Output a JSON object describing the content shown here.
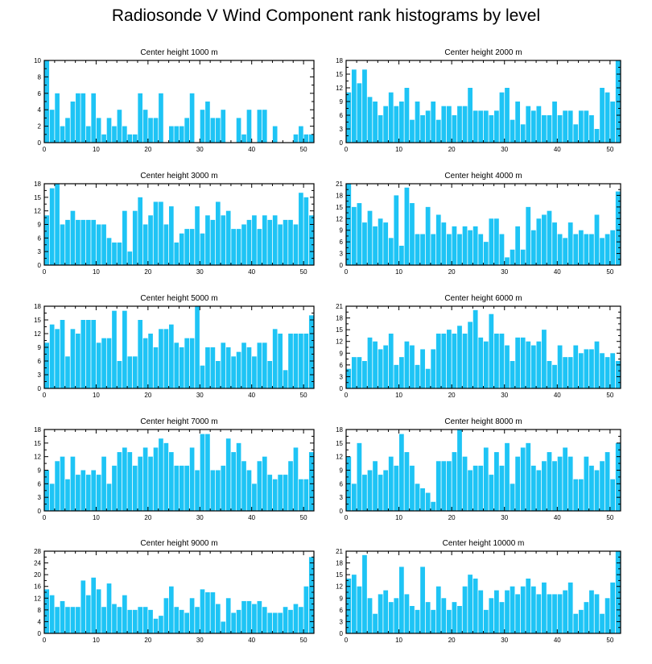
{
  "title": "Radiosonde V Wind Component rank histograms by level",
  "bar_color": "#1ec4f5",
  "chart_data": [
    {
      "type": "bar",
      "title": "Center height 1000 m",
      "xlim": [
        0,
        52
      ],
      "ylim": [
        0,
        10
      ],
      "xticks": [
        0,
        10,
        20,
        30,
        40,
        50
      ],
      "yticks": [
        0,
        2,
        4,
        6,
        8,
        10
      ],
      "values": [
        10,
        4,
        6,
        2,
        3,
        5,
        6,
        6,
        2,
        6,
        3,
        1,
        3,
        2,
        4,
        2,
        1,
        1,
        6,
        4,
        3,
        3,
        6,
        0,
        2,
        2,
        2,
        3,
        6,
        0,
        4,
        5,
        3,
        3,
        4,
        0,
        0,
        3,
        1,
        4,
        0,
        4,
        4,
        0,
        2,
        0,
        0,
        0,
        1,
        2,
        1,
        1
      ]
    },
    {
      "type": "bar",
      "title": "Center height 2000 m",
      "xlim": [
        0,
        52
      ],
      "ylim": [
        0,
        18
      ],
      "xticks": [
        0,
        10,
        20,
        30,
        40,
        50
      ],
      "yticks": [
        0,
        3,
        6,
        9,
        12,
        15,
        18
      ],
      "values": [
        11,
        16,
        13,
        16,
        10,
        9,
        6,
        8,
        11,
        8,
        9,
        12,
        5,
        9,
        6,
        7,
        9,
        5,
        8,
        8,
        6,
        8,
        8,
        12,
        7,
        7,
        7,
        6,
        7,
        11,
        12,
        5,
        9,
        4,
        8,
        7,
        8,
        6,
        6,
        9,
        6,
        7,
        7,
        4,
        7,
        7,
        6,
        3,
        12,
        11,
        9,
        18
      ]
    },
    {
      "type": "bar",
      "title": "Center height 3000 m",
      "xlim": [
        0,
        52
      ],
      "ylim": [
        0,
        18
      ],
      "xticks": [
        0,
        10,
        20,
        30,
        40,
        50
      ],
      "yticks": [
        0,
        3,
        6,
        9,
        12,
        15,
        18
      ],
      "values": [
        11,
        17,
        18,
        9,
        10,
        12,
        10,
        10,
        10,
        10,
        9,
        9,
        6,
        5,
        5,
        12,
        3,
        12,
        15,
        9,
        11,
        14,
        14,
        9,
        13,
        5,
        7,
        8,
        8,
        13,
        7,
        11,
        10,
        14,
        11,
        12,
        8,
        8,
        9,
        10,
        11,
        8,
        11,
        10,
        11,
        9,
        10,
        10,
        9,
        16,
        15,
        11
      ]
    },
    {
      "type": "bar",
      "title": "Center height 4000 m",
      "xlim": [
        0,
        52
      ],
      "ylim": [
        0,
        21
      ],
      "xticks": [
        0,
        10,
        20,
        30,
        40,
        50
      ],
      "yticks": [
        0,
        3,
        6,
        9,
        12,
        15,
        18,
        21
      ],
      "values": [
        21,
        15,
        16,
        11,
        14,
        10,
        12,
        11,
        7,
        18,
        5,
        20,
        16,
        8,
        8,
        15,
        8,
        13,
        11,
        8,
        10,
        8,
        10,
        9,
        10,
        8,
        6,
        12,
        12,
        8,
        2,
        4,
        10,
        4,
        15,
        9,
        12,
        13,
        14,
        11,
        8,
        7,
        11,
        8,
        9,
        8,
        8,
        13,
        7,
        8,
        9,
        19
      ]
    },
    {
      "type": "bar",
      "title": "Center height 5000 m",
      "xlim": [
        0,
        52
      ],
      "ylim": [
        0,
        18
      ],
      "xticks": [
        0,
        10,
        20,
        30,
        40,
        50
      ],
      "yticks": [
        0,
        3,
        6,
        9,
        12,
        15,
        18
      ],
      "values": [
        10,
        14,
        13,
        15,
        7,
        13,
        12,
        15,
        15,
        15,
        10,
        11,
        11,
        17,
        6,
        17,
        7,
        7,
        15,
        11,
        12,
        9,
        13,
        13,
        14,
        10,
        9,
        11,
        11,
        18,
        5,
        9,
        9,
        6,
        10,
        9,
        7,
        8,
        10,
        9,
        7,
        10,
        10,
        6,
        13,
        12,
        4,
        12,
        12,
        12,
        12,
        16
      ]
    },
    {
      "type": "bar",
      "title": "Center height 6000 m",
      "xlim": [
        0,
        52
      ],
      "ylim": [
        0,
        21
      ],
      "xticks": [
        0,
        10,
        20,
        30,
        40,
        50
      ],
      "yticks": [
        0,
        3,
        6,
        9,
        12,
        15,
        18,
        21
      ],
      "values": [
        5,
        8,
        8,
        7,
        13,
        12,
        10,
        11,
        14,
        6,
        8,
        12,
        11,
        6,
        10,
        5,
        10,
        14,
        14,
        15,
        14,
        16,
        14,
        17,
        20,
        13,
        12,
        19,
        14,
        14,
        11,
        7,
        13,
        13,
        12,
        11,
        12,
        15,
        7,
        6,
        11,
        8,
        8,
        11,
        9,
        10,
        10,
        12,
        9,
        8,
        9,
        7
      ]
    },
    {
      "type": "bar",
      "title": "Center height 7000 m",
      "xlim": [
        0,
        52
      ],
      "ylim": [
        0,
        18
      ],
      "xticks": [
        0,
        10,
        20,
        30,
        40,
        50
      ],
      "yticks": [
        0,
        3,
        6,
        9,
        12,
        15,
        18
      ],
      "values": [
        9,
        6,
        11,
        12,
        7,
        12,
        8,
        9,
        8,
        9,
        8,
        12,
        6,
        10,
        13,
        14,
        13,
        10,
        12,
        14,
        12,
        14,
        16,
        15,
        13,
        10,
        10,
        10,
        14,
        9,
        17,
        17,
        9,
        9,
        10,
        16,
        13,
        15,
        11,
        9,
        6,
        11,
        12,
        8,
        7,
        8,
        8,
        11,
        14,
        7,
        7,
        13
      ]
    },
    {
      "type": "bar",
      "title": "Center height 8000 m",
      "xlim": [
        0,
        52
      ],
      "ylim": [
        0,
        18
      ],
      "xticks": [
        0,
        10,
        20,
        30,
        40,
        50
      ],
      "yticks": [
        0,
        3,
        6,
        9,
        12,
        15,
        18
      ],
      "values": [
        12,
        6,
        15,
        8,
        9,
        11,
        8,
        9,
        12,
        10,
        17,
        13,
        10,
        6,
        5,
        4,
        2,
        11,
        11,
        11,
        13,
        18,
        12,
        9,
        10,
        10,
        14,
        8,
        13,
        10,
        15,
        6,
        12,
        14,
        15,
        10,
        9,
        11,
        13,
        11,
        12,
        14,
        12,
        7,
        7,
        12,
        10,
        9,
        11,
        13,
        7,
        15
      ]
    },
    {
      "type": "bar",
      "title": "Center height 9000 m",
      "xlim": [
        0,
        52
      ],
      "ylim": [
        0,
        28
      ],
      "xticks": [
        0,
        10,
        20,
        30,
        40,
        50
      ],
      "yticks": [
        0,
        4,
        8,
        12,
        16,
        20,
        24,
        28
      ],
      "values": [
        15,
        13,
        9,
        11,
        9,
        9,
        9,
        18,
        13,
        19,
        15,
        9,
        17,
        10,
        9,
        13,
        8,
        8,
        9,
        9,
        8,
        5,
        6,
        12,
        16,
        9,
        8,
        7,
        12,
        9,
        15,
        14,
        14,
        10,
        4,
        12,
        7,
        8,
        11,
        11,
        10,
        11,
        9,
        7,
        7,
        7,
        9,
        8,
        10,
        9,
        16,
        26
      ]
    },
    {
      "type": "bar",
      "title": "Center height 10000 m",
      "xlim": [
        0,
        52
      ],
      "ylim": [
        0,
        21
      ],
      "xticks": [
        0,
        10,
        20,
        30,
        40,
        50
      ],
      "yticks": [
        0,
        3,
        6,
        9,
        12,
        15,
        18,
        21
      ],
      "values": [
        14,
        15,
        12,
        20,
        9,
        5,
        10,
        11,
        8,
        9,
        17,
        10,
        7,
        6,
        17,
        8,
        6,
        12,
        9,
        6,
        8,
        7,
        12,
        15,
        14,
        11,
        6,
        9,
        11,
        8,
        11,
        12,
        10,
        12,
        14,
        12,
        10,
        13,
        10,
        10,
        10,
        11,
        13,
        5,
        6,
        8,
        11,
        10,
        5,
        9,
        13,
        21
      ]
    }
  ]
}
